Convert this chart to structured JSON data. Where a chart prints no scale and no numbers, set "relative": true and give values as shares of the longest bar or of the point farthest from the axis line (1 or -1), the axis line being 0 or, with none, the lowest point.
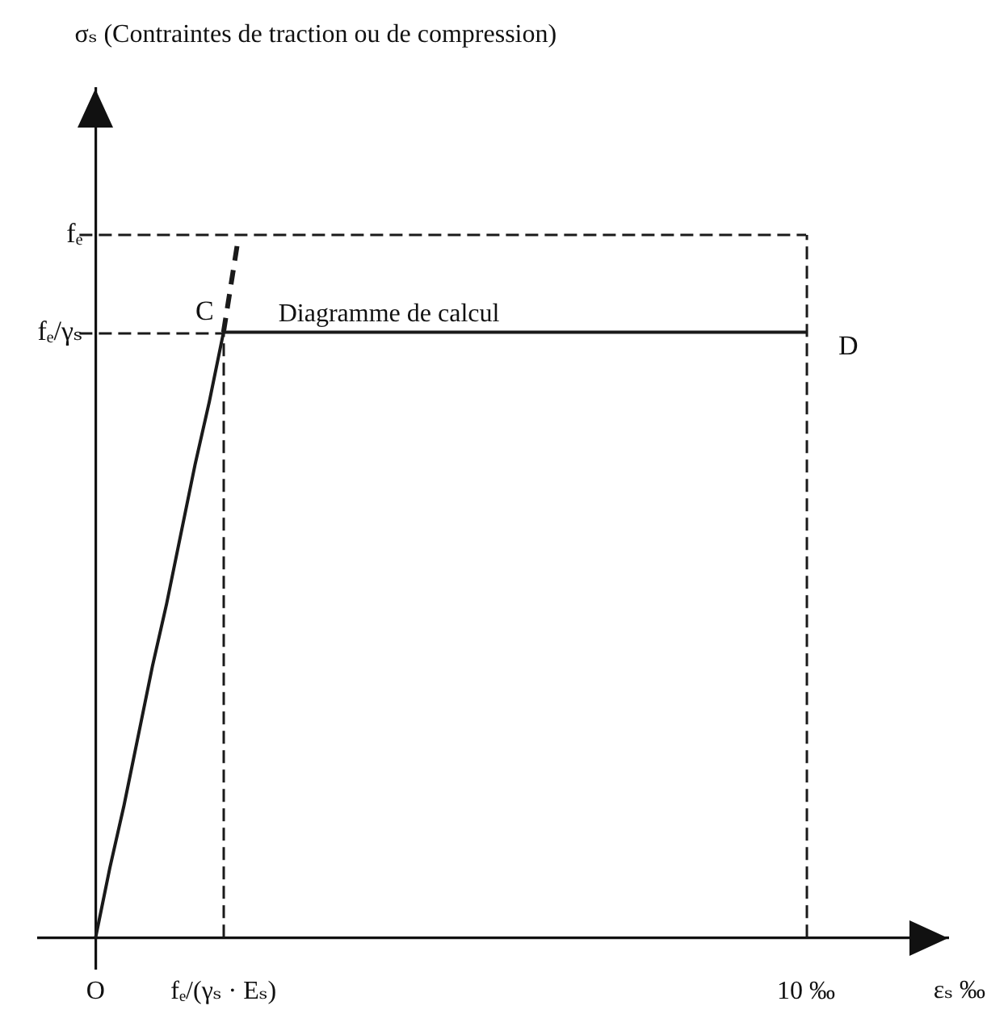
{
  "chart_data": {
    "type": "line",
    "xlabel": "εₛ ‰",
    "relative": true,
    "categories": [
      null,
      null,
      null,
      null,
      "O",
      null,
      null,
      null,
      null,
      null,
      null,
      null,
      null,
      "fₑ/(γₛ · Eₛ)",
      null,
      null,
      null,
      null,
      null,
      null,
      null,
      null,
      null,
      null,
      null,
      null,
      null,
      null,
      null,
      null,
      null,
      null,
      null,
      null,
      null,
      null,
      null,
      null,
      null,
      null,
      null,
      null,
      null,
      null,
      null,
      null,
      null,
      null,
      null,
      null,
      null,
      null,
      null,
      null,
      "10 ‰",
      null,
      null,
      null,
      null,
      null,
      null,
      null,
      null,
      null,
      null
    ],
    "series": [
      {
        "name": "Diagramme de calcul",
        "color": "#1a1a1a",
        "line_style": "solid",
        "values": [
          null,
          null,
          null,
          null,
          0,
          0.1,
          0.19,
          0.29,
          0.39,
          0.48,
          0.58,
          0.68,
          0.77,
          0.87,
          0.87,
          0.87,
          0.87,
          0.87,
          0.87,
          0.87,
          0.87,
          0.87,
          0.87,
          0.87,
          0.87,
          0.87,
          0.87,
          0.87,
          0.87,
          0.87,
          0.87,
          0.87,
          0.87,
          0.87,
          0.87,
          0.87,
          0.87,
          0.87,
          0.87,
          0.87,
          0.87,
          0.87,
          0.87,
          0.87,
          0.87,
          0.87,
          0.87,
          0.87,
          0.87,
          0.87,
          0.87,
          0.87,
          0.87,
          0.87,
          0.87,
          null,
          null,
          null,
          null,
          null,
          null,
          null,
          null,
          null,
          null
        ]
      },
      {
        "color": "#1a1a1a",
        "line_style": "dashed",
        "values": [
          null,
          null,
          null,
          null,
          null,
          null,
          null,
          null,
          null,
          null,
          null,
          null,
          null,
          0.87,
          1,
          null,
          null,
          null,
          null,
          null,
          null,
          null,
          null,
          null,
          null,
          null,
          null,
          null,
          null,
          null,
          null,
          null,
          null,
          null,
          null,
          null,
          null,
          null,
          null,
          null,
          null,
          null,
          null,
          null,
          null,
          null,
          null,
          null,
          null,
          null,
          null,
          null,
          null,
          null,
          null,
          null,
          null,
          null,
          null,
          null,
          null,
          null,
          null,
          null,
          null
        ]
      }
    ],
    "ref_lines": [
      {
        "axis": "y",
        "value": 1.01,
        "label": "fₑ",
        "line_style": "dashed",
        "color": "#1a1a1a"
      },
      {
        "axis": "y",
        "value": 0.87,
        "label": "fₑ/γₛ",
        "line_style": "dashed",
        "color": "#1a1a1a"
      },
      {
        "axis": "x",
        "value": "fₑ/(γₛ · Eₛ)",
        "line_style": "dashed",
        "color": "#1a1a1a"
      },
      {
        "axis": "x",
        "value": "10 ‰",
        "line_style": "dashed",
        "color": "#1a1a1a"
      }
    ],
    "annotations": [
      "σₛ (Contraintes de traction ou de compression)",
      {
        "text": "C",
        "x": "fₑ/(γₛ · Eₛ)",
        "y": 0.87
      },
      {
        "text": "D",
        "x": "10 ‰",
        "y": 0.87
      }
    ]
  }
}
